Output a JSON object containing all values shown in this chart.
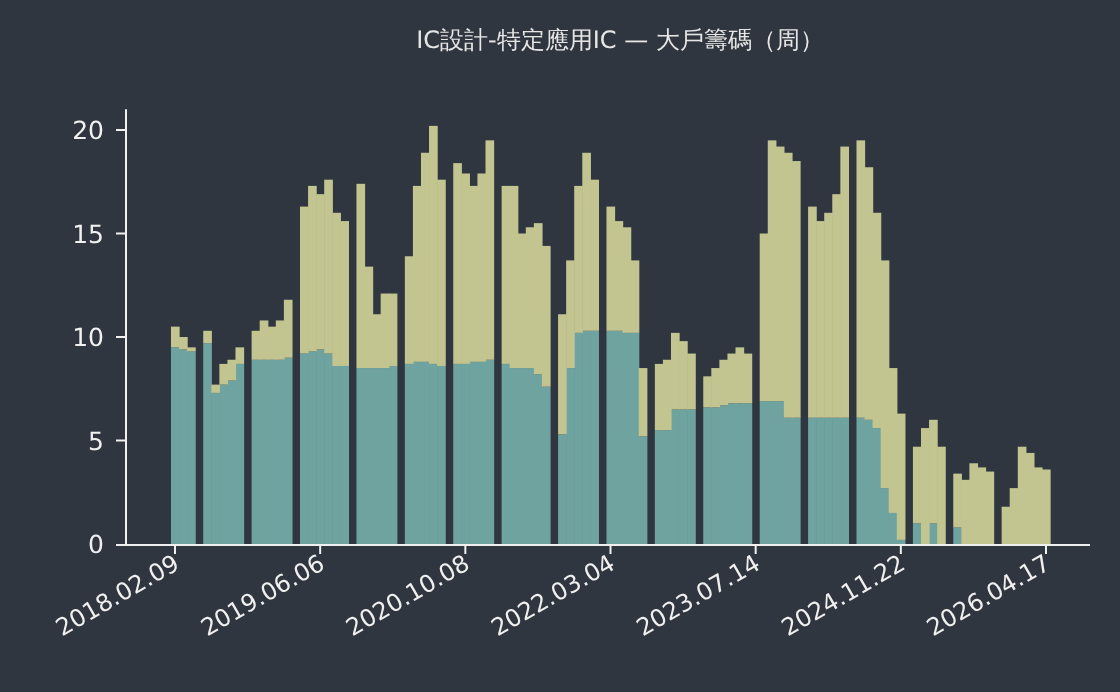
{
  "chart_data": {
    "type": "bar",
    "title": "IC設計-特定應用IC — 大戶籌碼（周）",
    "stacked": true,
    "categories": [
      "2018.02.09",
      null,
      null,
      null,
      null,
      null,
      null,
      null,
      null,
      null,
      null,
      null,
      null,
      null,
      null,
      null,
      null,
      null,
      "2019.06.06",
      null,
      null,
      null,
      null,
      null,
      null,
      null,
      null,
      null,
      null,
      null,
      null,
      null,
      null,
      null,
      null,
      null,
      "2020.10.08",
      null,
      null,
      null,
      null,
      null,
      null,
      null,
      null,
      null,
      null,
      null,
      null,
      null,
      null,
      null,
      null,
      null,
      "2022.03.04",
      null,
      null,
      null,
      null,
      null,
      null,
      null,
      null,
      null,
      null,
      null,
      null,
      null,
      null,
      null,
      null,
      null,
      "2023.07.14",
      null,
      null,
      null,
      null,
      null,
      null,
      null,
      null,
      null,
      null,
      null,
      null,
      null,
      null,
      null,
      null,
      null,
      "2024.11.22",
      null,
      null,
      null,
      null,
      null,
      null,
      null,
      null,
      null,
      null,
      null,
      null,
      null,
      null,
      null,
      null,
      null,
      "2026.04.17"
    ],
    "series": [
      {
        "color": "#6fa3a0",
        "values": [
          9.5,
          9.4,
          9.3,
          null,
          9.7,
          7.3,
          7.7,
          7.9,
          8.7,
          null,
          8.9,
          8.9,
          8.9,
          8.9,
          9.0,
          null,
          9.2,
          9.3,
          9.4,
          9.2,
          8.6,
          8.6,
          null,
          8.5,
          8.5,
          8.5,
          8.5,
          8.6,
          null,
          8.7,
          8.8,
          8.8,
          8.7,
          8.6,
          null,
          8.7,
          8.7,
          8.8,
          8.8,
          8.9,
          null,
          8.7,
          8.5,
          8.5,
          8.5,
          8.2,
          7.6,
          null,
          5.3,
          8.5,
          10.2,
          10.3,
          10.3,
          null,
          10.3,
          10.3,
          10.2,
          10.2,
          5.2,
          null,
          5.5,
          5.5,
          6.5,
          6.5,
          6.5,
          null,
          6.6,
          6.6,
          6.7,
          6.8,
          6.8,
          6.8,
          null,
          6.9,
          6.9,
          6.9,
          6.1,
          6.1,
          null,
          6.1,
          6.1,
          6.1,
          6.1,
          6.1,
          null,
          6.1,
          6.0,
          5.6,
          2.7,
          1.5,
          0.2,
          null,
          1.0,
          null,
          1.0,
          null,
          null,
          0.8,
          null,
          null,
          null,
          null,
          null,
          null,
          null,
          null,
          null,
          null,
          null
        ]
      },
      {
        "color": "#c3c591",
        "values": [
          1.0,
          0.6,
          0.2,
          null,
          0.6,
          0.4,
          1.0,
          1.0,
          0.8,
          null,
          1.4,
          1.9,
          1.6,
          1.9,
          2.8,
          null,
          7.1,
          8.0,
          7.5,
          8.4,
          7.4,
          7.0,
          null,
          8.9,
          4.9,
          2.6,
          3.6,
          3.5,
          null,
          5.2,
          8.5,
          10.1,
          11.5,
          9.0,
          null,
          9.7,
          9.2,
          8.5,
          9.1,
          10.6,
          null,
          8.6,
          8.8,
          6.5,
          6.8,
          7.3,
          6.8,
          null,
          5.8,
          5.2,
          7.1,
          8.6,
          7.3,
          null,
          6.0,
          5.3,
          5.1,
          3.5,
          3.3,
          null,
          3.2,
          3.4,
          3.7,
          3.3,
          2.7,
          null,
          1.5,
          1.9,
          2.2,
          2.4,
          2.7,
          2.4,
          null,
          8.1,
          12.6,
          12.3,
          12.8,
          12.4,
          null,
          10.2,
          9.5,
          9.9,
          10.8,
          13.1,
          null,
          13.4,
          12.2,
          10.4,
          11.0,
          7.0,
          6.1,
          null,
          3.7,
          5.6,
          5.0,
          4.7,
          null,
          2.6,
          3.1,
          3.9,
          3.7,
          3.5,
          null,
          1.8,
          2.7,
          4.7,
          4.4,
          3.7,
          3.6
        ]
      }
    ],
    "ylim": [
      0,
      21
    ],
    "yticks": [
      0,
      5,
      10,
      15,
      20
    ]
  }
}
